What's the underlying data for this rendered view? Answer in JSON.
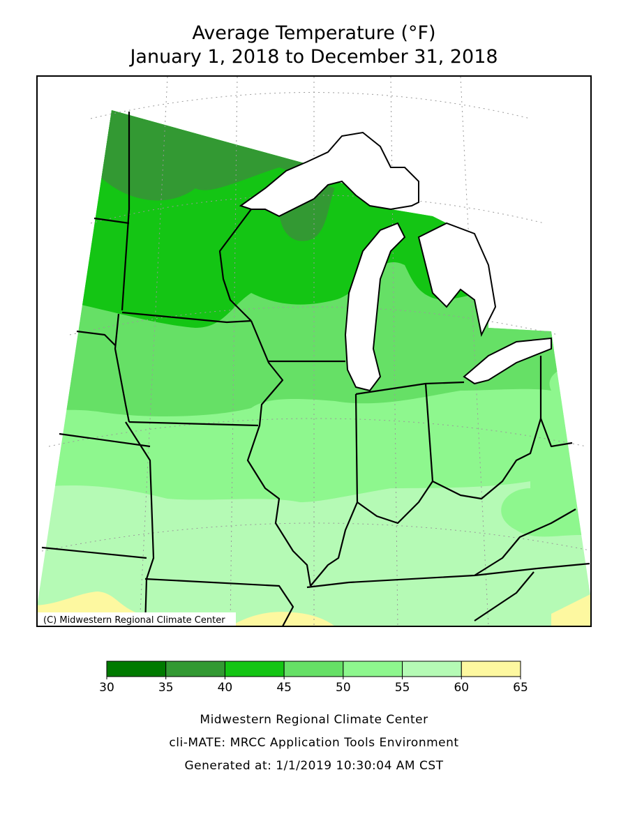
{
  "header": {
    "title": "Average Temperature (°F)",
    "subtitle": "January 1, 2018 to December 31, 2018"
  },
  "map": {
    "copyright": "(C) Midwestern Regional Climate Center"
  },
  "legend": {
    "bins": [
      30,
      35,
      40,
      45,
      50,
      55,
      60,
      65
    ],
    "colors": [
      "#007a00",
      "#339933",
      "#14c514",
      "#66e066",
      "#8ef78e",
      "#b5fab5",
      "#fdf8a0"
    ]
  },
  "footer": {
    "lines": [
      "Midwestern Regional Climate Center",
      "cli-MATE: MRCC Application Tools Environment",
      "Generated at: 1/1/2019 10:30:04 AM CST"
    ]
  }
}
